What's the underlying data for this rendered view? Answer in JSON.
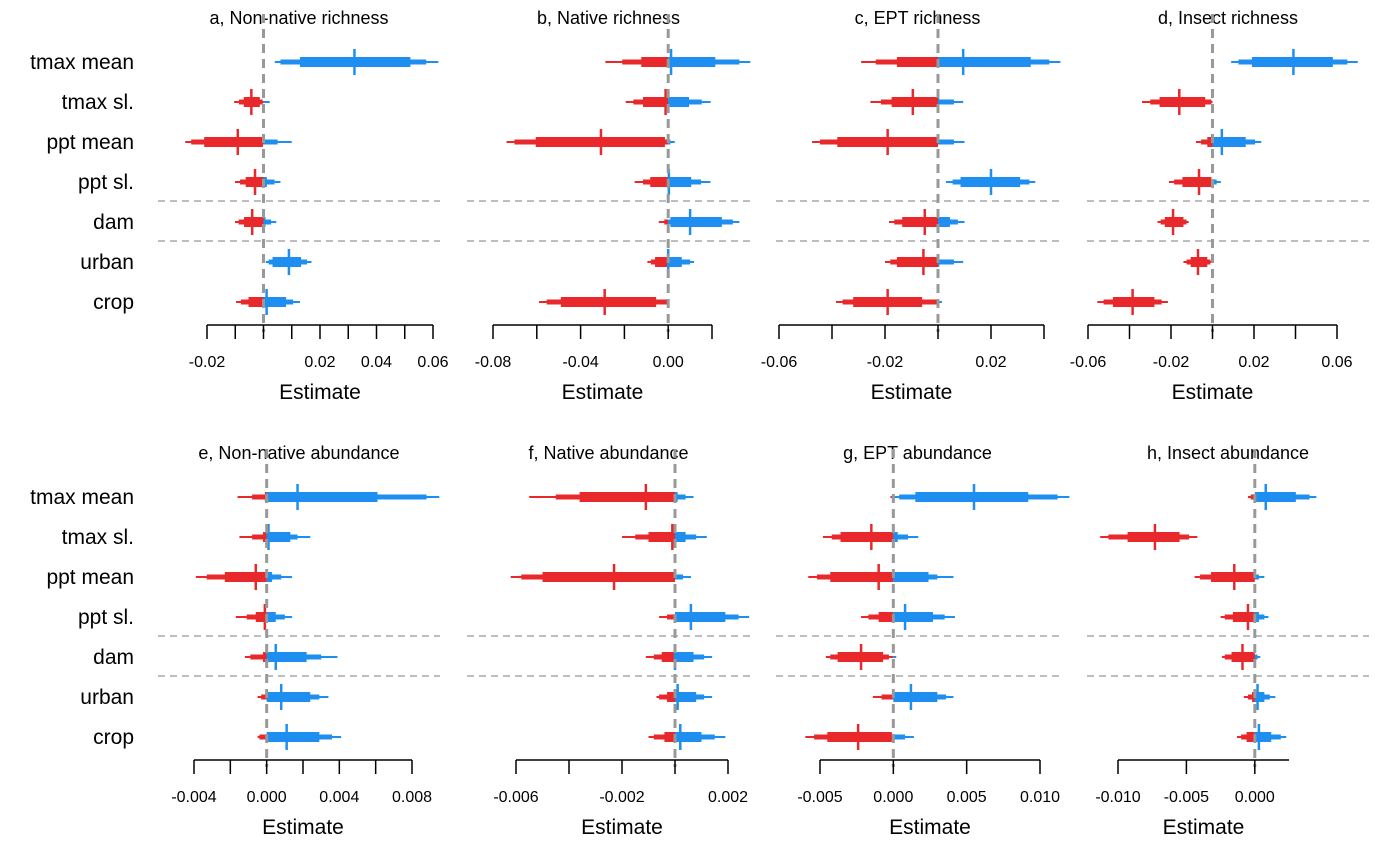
{
  "colors": {
    "negative": "#e8282b",
    "positive": "#1e8ff0",
    "zero_line": "#999999",
    "separator": "#a8a8a8",
    "axis": "#000000"
  },
  "row_labels": [
    "tmax mean",
    "tmax sl.",
    "ppt mean",
    "ppt sl.",
    "dam",
    "urban",
    "crop"
  ],
  "chart_data": [
    {
      "type": "interval",
      "title": "a, Non-native richness",
      "xlabel": "Estimate",
      "xlim": [
        -0.02,
        0.06
      ],
      "ticks": [
        -0.02,
        -0.01,
        0,
        0.01,
        0.02,
        0.03,
        0.04,
        0.05,
        0.06
      ],
      "tick_labels": [
        [
          "-0.02",
          -0.02
        ],
        [
          "0.02",
          0.02
        ],
        [
          "0.04",
          0.04
        ],
        [
          "0.06",
          0.06
        ]
      ],
      "series": [
        {
          "estimate": 0.0322,
          "ci50": [
            0.0129,
            0.052
          ],
          "ci80": [
            0.006,
            0.0576
          ],
          "ci95": [
            0.004,
            0.0619
          ]
        },
        {
          "estimate": -0.0043,
          "ci50": [
            -0.007,
            -0.0013
          ],
          "ci80": [
            -0.0087,
            -0.0003
          ],
          "ci95": [
            -0.0104,
            0.0022
          ]
        },
        {
          "estimate": -0.0091,
          "ci50": [
            -0.021,
            -0.0002
          ],
          "ci80": [
            -0.0256,
            0.005
          ],
          "ci95": [
            -0.0277,
            0.01
          ]
        },
        {
          "estimate": -0.003,
          "ci50": [
            -0.0063,
            0.0012
          ],
          "ci80": [
            -0.0083,
            0.0039
          ],
          "ci95": [
            -0.0101,
            0.006
          ]
        },
        {
          "estimate": -0.004,
          "ci50": [
            -0.0069,
            0.0007
          ],
          "ci80": [
            -0.0088,
            0.0027
          ],
          "ci95": [
            -0.0101,
            0.0045
          ]
        },
        {
          "estimate": 0.009,
          "ci50": [
            0.0032,
            0.0133
          ],
          "ci80": [
            0.0018,
            0.0154
          ],
          "ci95": [
            0.0008,
            0.017
          ]
        },
        {
          "estimate": 0.0011,
          "ci50": [
            -0.0053,
            0.008
          ],
          "ci80": [
            -0.008,
            0.0105
          ],
          "ci95": [
            -0.0097,
            0.0129
          ]
        }
      ]
    },
    {
      "type": "interval",
      "title": "b, Native richness",
      "xlabel": "Estimate",
      "xlim": [
        -0.08,
        0.02
      ],
      "ticks": [
        -0.08,
        -0.06,
        -0.04,
        -0.02,
        0,
        0.02
      ],
      "tick_labels": [
        [
          "-0.08",
          -0.08
        ],
        [
          "-0.04",
          -0.04
        ],
        [
          "0.00",
          0
        ]
      ],
      "series": [
        {
          "estimate": 0.0013,
          "ci50": [
            -0.0123,
            0.0215
          ],
          "ci80": [
            -0.021,
            0.0325
          ],
          "ci95": [
            -0.0287,
            0.0375
          ]
        },
        {
          "estimate": -0.0012,
          "ci50": [
            -0.0115,
            0.0095
          ],
          "ci80": [
            -0.0159,
            0.0153
          ],
          "ci95": [
            -0.0194,
            0.0194
          ]
        },
        {
          "estimate": -0.0307,
          "ci50": [
            -0.0605,
            -0.0015
          ],
          "ci80": [
            -0.0702,
            0.001
          ],
          "ci95": [
            -0.0738,
            0.003
          ]
        },
        {
          "estimate": 0.0003,
          "ci50": [
            -0.0082,
            0.0105
          ],
          "ci80": [
            -0.0115,
            0.015
          ],
          "ci95": [
            -0.0153,
            0.0193
          ]
        },
        {
          "estimate": 0.01,
          "ci50": [
            0.001,
            0.0245
          ],
          "ci80": [
            -0.0018,
            0.0295
          ],
          "ci95": [
            -0.0043,
            0.0325
          ]
        },
        {
          "estimate": 0.0,
          "ci50": [
            -0.006,
            0.0062
          ],
          "ci80": [
            -0.0079,
            0.01
          ],
          "ci95": [
            -0.0095,
            0.0118
          ]
        },
        {
          "estimate": -0.029,
          "ci50": [
            -0.049,
            -0.0055
          ],
          "ci80": [
            -0.0555,
            -0.0005
          ],
          "ci95": [
            -0.059,
            0.0005
          ]
        }
      ]
    },
    {
      "type": "interval",
      "title": "c, EPT richness",
      "xlabel": "Estimate",
      "xlim": [
        -0.06,
        0.04
      ],
      "ticks": [
        -0.06,
        -0.04,
        -0.02,
        0,
        0.02,
        0.04
      ],
      "tick_labels": [
        [
          "-0.06",
          -0.06
        ],
        [
          "-0.02",
          -0.02
        ],
        [
          "0.02",
          0.02
        ]
      ],
      "series": [
        {
          "estimate": 0.0095,
          "ci50": [
            -0.0155,
            0.035
          ],
          "ci80": [
            -0.0235,
            0.042
          ],
          "ci95": [
            -0.029,
            0.0462
          ]
        },
        {
          "estimate": -0.0095,
          "ci50": [
            -0.0175,
            0.0005
          ],
          "ci80": [
            -0.0215,
            0.006
          ],
          "ci95": [
            -0.0255,
            0.0095
          ]
        },
        {
          "estimate": -0.019,
          "ci50": [
            -0.038,
            0.0
          ],
          "ci80": [
            -0.0445,
            0.006
          ],
          "ci95": [
            -0.0475,
            0.01
          ]
        },
        {
          "estimate": 0.02,
          "ci50": [
            0.0085,
            0.031
          ],
          "ci80": [
            0.0055,
            0.0345
          ],
          "ci95": [
            0.003,
            0.0367
          ]
        },
        {
          "estimate": -0.005,
          "ci50": [
            -0.0135,
            0.0045
          ],
          "ci80": [
            -0.0165,
            0.0075
          ],
          "ci95": [
            -0.0185,
            0.01
          ]
        },
        {
          "estimate": -0.0055,
          "ci50": [
            -0.0155,
            0.0005
          ],
          "ci80": [
            -0.018,
            0.006
          ],
          "ci95": [
            -0.02,
            0.0095
          ]
        },
        {
          "estimate": -0.019,
          "ci50": [
            -0.032,
            -0.006
          ],
          "ci80": [
            -0.036,
            0.0
          ],
          "ci95": [
            -0.0385,
            0.0015
          ]
        }
      ]
    },
    {
      "type": "interval",
      "title": "d, Insect richness",
      "xlabel": "Estimate",
      "xlim": [
        -0.06,
        0.06
      ],
      "ticks": [
        -0.06,
        -0.04,
        -0.02,
        0,
        0.02,
        0.04,
        0.06
      ],
      "tick_labels": [
        [
          "-0.06",
          -0.06
        ],
        [
          "-0.02",
          -0.02
        ],
        [
          "0.02",
          0.02
        ],
        [
          "0.06",
          0.06
        ]
      ],
      "series": [
        {
          "estimate": 0.039,
          "ci50": [
            0.019,
            0.058
          ],
          "ci80": [
            0.0125,
            0.065
          ],
          "ci95": [
            0.009,
            0.07
          ]
        },
        {
          "estimate": -0.016,
          "ci50": [
            -0.0255,
            -0.0035
          ],
          "ci80": [
            -0.03,
            -0.0005
          ],
          "ci95": [
            -0.034,
            0.0
          ]
        },
        {
          "estimate": 0.0045,
          "ci50": [
            -0.0025,
            0.016
          ],
          "ci80": [
            -0.0055,
            0.0205
          ],
          "ci95": [
            -0.008,
            0.0235
          ]
        },
        {
          "estimate": -0.0065,
          "ci50": [
            -0.0145,
            -0.0005
          ],
          "ci80": [
            -0.0185,
            0.002
          ],
          "ci95": [
            -0.021,
            0.004
          ]
        },
        {
          "estimate": -0.019,
          "ci50": [
            -0.023,
            -0.014
          ],
          "ci80": [
            -0.025,
            -0.0125
          ],
          "ci95": [
            -0.0265,
            -0.0115
          ]
        },
        {
          "estimate": -0.007,
          "ci50": [
            -0.0105,
            -0.0025
          ],
          "ci80": [
            -0.0125,
            -0.001
          ],
          "ci95": [
            -0.014,
            0.0
          ]
        },
        {
          "estimate": -0.0385,
          "ci50": [
            -0.048,
            -0.028
          ],
          "ci80": [
            -0.0525,
            -0.0245
          ],
          "ci95": [
            -0.0555,
            -0.0215
          ]
        }
      ]
    },
    {
      "type": "interval",
      "title": "e, Non-native abundance",
      "xlabel": "Estimate",
      "xlim": [
        -0.004,
        0.008
      ],
      "ticks": [
        -0.004,
        -0.002,
        0,
        0.002,
        0.004,
        0.006,
        0.008
      ],
      "tick_labels": [
        [
          "-0.004",
          -0.004
        ],
        [
          "0.000",
          0
        ],
        [
          "0.004",
          0.004
        ],
        [
          "0.008",
          0.008
        ]
      ],
      "series": [
        {
          "estimate": 0.0017,
          "ci50": [
            -0.0001,
            0.0061
          ],
          "ci80": [
            -0.0008,
            0.0088
          ],
          "ci95": [
            -0.0016,
            0.0095
          ]
        },
        {
          "estimate": 0.0001,
          "ci50": [
            -0.0002,
            0.0013
          ],
          "ci80": [
            -0.0008,
            0.0017
          ],
          "ci95": [
            -0.0015,
            0.0024
          ]
        },
        {
          "estimate": -0.0006,
          "ci50": [
            -0.0023,
            0.0003
          ],
          "ci80": [
            -0.0033,
            0.0008
          ],
          "ci95": [
            -0.0039,
            0.0014
          ]
        },
        {
          "estimate": -0.0001,
          "ci50": [
            -0.0006,
            0.0005
          ],
          "ci80": [
            -0.0011,
            0.001
          ],
          "ci95": [
            -0.0017,
            0.0014
          ]
        },
        {
          "estimate": 0.0005,
          "ci50": [
            -0.0002,
            0.0022
          ],
          "ci80": [
            -0.0009,
            0.003
          ],
          "ci95": [
            -0.0012,
            0.0039
          ]
        },
        {
          "estimate": 0.0008,
          "ci50": [
            0.0,
            0.0024
          ],
          "ci80": [
            -0.0003,
            0.0029
          ],
          "ci95": [
            -0.0005,
            0.0034
          ]
        },
        {
          "estimate": 0.0011,
          "ci50": [
            0.0,
            0.0029
          ],
          "ci80": [
            -0.0004,
            0.0036
          ],
          "ci95": [
            -0.0005,
            0.0041
          ]
        }
      ]
    },
    {
      "type": "interval",
      "title": "f, Native abundance",
      "xlabel": "Estimate",
      "xlim": [
        -0.006,
        0.002
      ],
      "ticks": [
        -0.006,
        -0.004,
        -0.002,
        0,
        0.002
      ],
      "tick_labels": [
        [
          "-0.006",
          -0.006
        ],
        [
          "-0.002",
          -0.002
        ],
        [
          "0.002",
          0.002
        ]
      ],
      "series": [
        {
          "estimate": -0.0011,
          "ci50": [
            -0.0036,
            0.0001
          ],
          "ci80": [
            -0.0045,
            0.0004
          ],
          "ci95": [
            -0.0055,
            0.0007
          ]
        },
        {
          "estimate": -0.0001,
          "ci50": [
            -0.001,
            0.0004
          ],
          "ci80": [
            -0.0015,
            0.0008
          ],
          "ci95": [
            -0.002,
            0.0012
          ]
        },
        {
          "estimate": -0.0023,
          "ci50": [
            -0.005,
            0.0
          ],
          "ci80": [
            -0.0058,
            0.0003
          ],
          "ci95": [
            -0.0062,
            0.0006
          ]
        },
        {
          "estimate": 0.0006,
          "ci50": [
            0.0,
            0.0019
          ],
          "ci80": [
            -0.0003,
            0.0024
          ],
          "ci95": [
            -0.0006,
            0.0028
          ]
        },
        {
          "estimate": 0.0,
          "ci50": [
            -0.0005,
            0.0007
          ],
          "ci80": [
            -0.0008,
            0.0011
          ],
          "ci95": [
            -0.0011,
            0.0014
          ]
        },
        {
          "estimate": 0.0001,
          "ci50": [
            -0.0003,
            0.0008
          ],
          "ci80": [
            -0.0006,
            0.0011
          ],
          "ci95": [
            -0.0007,
            0.0014
          ]
        },
        {
          "estimate": 0.0002,
          "ci50": [
            -0.0004,
            0.001
          ],
          "ci80": [
            -0.0008,
            0.0015
          ],
          "ci95": [
            -0.001,
            0.0019
          ]
        }
      ]
    },
    {
      "type": "interval",
      "title": "g, EPT abundance",
      "xlabel": "Estimate",
      "xlim": [
        -0.005,
        0.01
      ],
      "ticks": [
        -0.005,
        0,
        0.005,
        0.01
      ],
      "tick_labels": [
        [
          "-0.005",
          -0.005
        ],
        [
          "0.000",
          0
        ],
        [
          "0.005",
          0.005
        ],
        [
          "0.010",
          0.01
        ]
      ],
      "series": [
        {
          "estimate": 0.0055,
          "ci50": [
            0.0015,
            0.0092
          ],
          "ci80": [
            0.0004,
            0.0112
          ],
          "ci95": [
            -0.0002,
            0.012
          ]
        },
        {
          "estimate": -0.0015,
          "ci50": [
            -0.0036,
            0.0003
          ],
          "ci80": [
            -0.0042,
            0.001
          ],
          "ci95": [
            -0.0048,
            0.0017
          ]
        },
        {
          "estimate": -0.001,
          "ci50": [
            -0.0043,
            0.0024
          ],
          "ci80": [
            -0.0052,
            0.003
          ],
          "ci95": [
            -0.0058,
            0.0041
          ]
        },
        {
          "estimate": 0.0008,
          "ci50": [
            -0.001,
            0.0027
          ],
          "ci80": [
            -0.0017,
            0.0035
          ],
          "ci95": [
            -0.0022,
            0.0042
          ]
        },
        {
          "estimate": -0.0022,
          "ci50": [
            -0.0038,
            -0.0007
          ],
          "ci80": [
            -0.0043,
            -0.0003
          ],
          "ci95": [
            -0.0046,
            0.0002
          ]
        },
        {
          "estimate": 0.0012,
          "ci50": [
            0.0,
            0.003
          ],
          "ci80": [
            -0.0008,
            0.0036
          ],
          "ci95": [
            -0.0014,
            0.0041
          ]
        },
        {
          "estimate": -0.0024,
          "ci50": [
            -0.0045,
            -0.0001
          ],
          "ci80": [
            -0.0054,
            0.0008
          ],
          "ci95": [
            -0.006,
            0.0014
          ]
        }
      ]
    },
    {
      "type": "interval",
      "title": "h, Insect abundance",
      "xlabel": "Estimate",
      "xlim": [
        -0.01,
        0.0025
      ],
      "ticks": [
        -0.01,
        -0.005,
        0
      ],
      "tick_labels": [
        [
          "-0.010",
          -0.01
        ],
        [
          "-0.005",
          -0.005
        ],
        [
          "0.000",
          0
        ]
      ],
      "series": [
        {
          "estimate": 0.0008,
          "ci50": [
            0.0,
            0.003
          ],
          "ci80": [
            -0.0003,
            0.004
          ],
          "ci95": [
            -0.0005,
            0.0045
          ]
        },
        {
          "estimate": -0.0073,
          "ci50": [
            -0.0093,
            -0.0055
          ],
          "ci80": [
            -0.0107,
            -0.0048
          ],
          "ci95": [
            -0.0113,
            -0.0042
          ]
        },
        {
          "estimate": -0.0015,
          "ci50": [
            -0.0032,
            0.0
          ],
          "ci80": [
            -0.004,
            0.0003
          ],
          "ci95": [
            -0.0044,
            0.0007
          ]
        },
        {
          "estimate": -0.0005,
          "ci50": [
            -0.0016,
            0.0003
          ],
          "ci80": [
            -0.0022,
            0.0007
          ],
          "ci95": [
            -0.0025,
            0.001
          ]
        },
        {
          "estimate": -0.0009,
          "ci50": [
            -0.0017,
            0.0
          ],
          "ci80": [
            -0.0022,
            0.0002
          ],
          "ci95": [
            -0.0024,
            0.0004
          ]
        },
        {
          "estimate": 0.0002,
          "ci50": [
            -0.0002,
            0.0007
          ],
          "ci80": [
            -0.0005,
            0.0011
          ],
          "ci95": [
            -0.0008,
            0.0015
          ]
        },
        {
          "estimate": 0.0003,
          "ci50": [
            -0.0006,
            0.0012
          ],
          "ci80": [
            -0.001,
            0.0019
          ],
          "ci95": [
            -0.0013,
            0.0023
          ]
        }
      ]
    }
  ]
}
